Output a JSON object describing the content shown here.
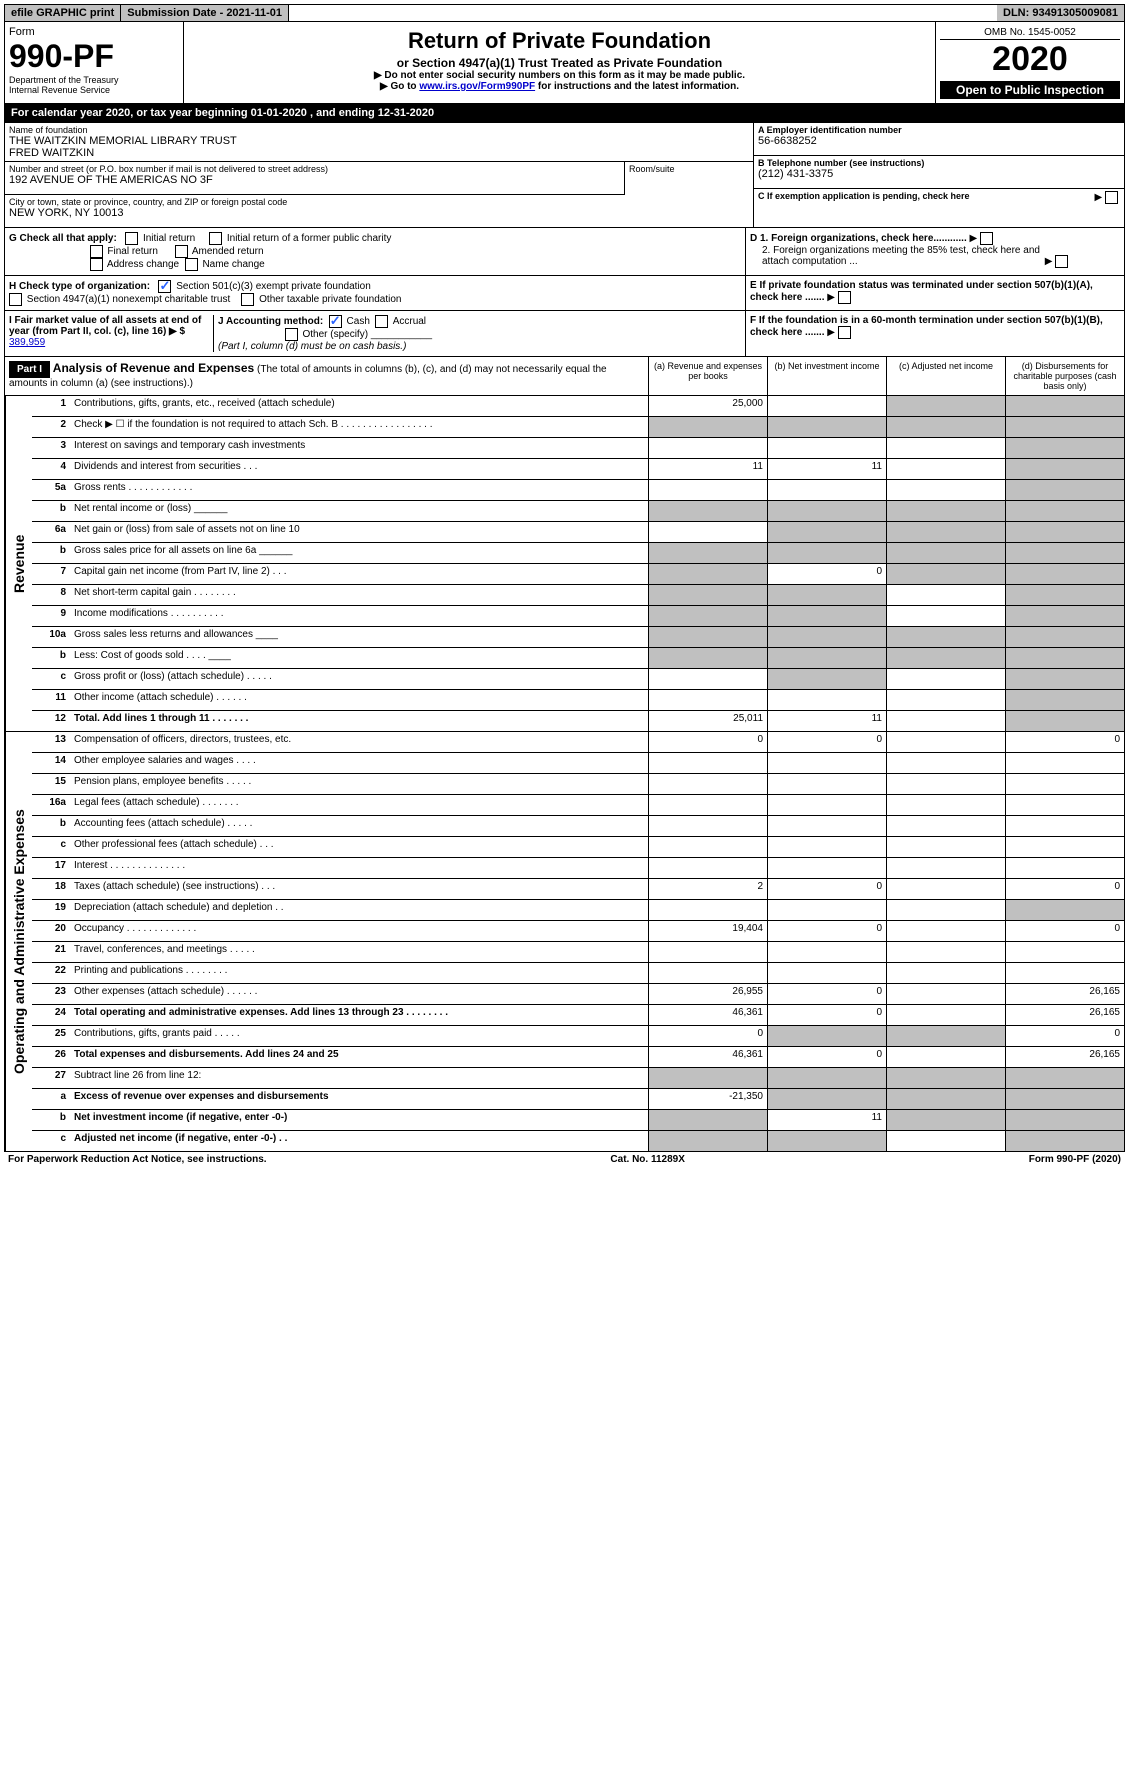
{
  "topbar": {
    "efile": "efile GRAPHIC print",
    "submission": "Submission Date - 2021-11-01",
    "dln": "DLN: 93491305009081"
  },
  "header": {
    "form_word": "Form",
    "form_num": "990-PF",
    "dept": "Department of the Treasury",
    "irs": "Internal Revenue Service",
    "title": "Return of Private Foundation",
    "subtitle": "or Section 4947(a)(1) Trust Treated as Private Foundation",
    "instr1": "▶ Do not enter social security numbers on this form as it may be made public.",
    "instr2_pre": "▶ Go to ",
    "instr2_link": "www.irs.gov/Form990PF",
    "instr2_post": " for instructions and the latest information.",
    "omb": "OMB No. 1545-0052",
    "year": "2020",
    "inspection": "Open to Public Inspection"
  },
  "calyear": "For calendar year 2020, or tax year beginning 01-01-2020          , and ending 12-31-2020",
  "info": {
    "name_label": "Name of foundation",
    "name": "THE WAITZKIN MEMORIAL LIBRARY TRUST",
    "name2": "FRED WAITZKIN",
    "addr_label": "Number and street (or P.O. box number if mail is not delivered to street address)",
    "addr": "192 AVENUE OF THE AMERICAS NO 3F",
    "room_label": "Room/suite",
    "city_label": "City or town, state or province, country, and ZIP or foreign postal code",
    "city": "NEW YORK, NY  10013",
    "ein_label": "A Employer identification number",
    "ein": "56-6638252",
    "phone_label": "B Telephone number (see instructions)",
    "phone": "(212) 431-3375",
    "c_label": "C If exemption application is pending, check here",
    "d1": "D 1. Foreign organizations, check here............",
    "d2": "2. Foreign organizations meeting the 85% test, check here and attach computation ...",
    "e_label": "E If private foundation status was terminated under section 507(b)(1)(A), check here .......",
    "f_label": "F If the foundation is in a 60-month termination under section 507(b)(1)(B), check here ......."
  },
  "g": {
    "label": "G Check all that apply:",
    "initial": "Initial return",
    "initial_former": "Initial return of a former public charity",
    "final": "Final return",
    "amended": "Amended return",
    "addr_change": "Address change",
    "name_change": "Name change"
  },
  "h": {
    "label": "H Check type of organization:",
    "s501": "Section 501(c)(3) exempt private foundation",
    "s4947": "Section 4947(a)(1) nonexempt charitable trust",
    "other": "Other taxable private foundation"
  },
  "i": {
    "label": "I Fair market value of all assets at end of year (from Part II, col. (c), line 16) ▶ $",
    "value": "389,959"
  },
  "j": {
    "label": "J Accounting method:",
    "cash": "Cash",
    "accrual": "Accrual",
    "other": "Other (specify)",
    "note": "(Part I, column (d) must be on cash basis.)"
  },
  "part1": {
    "label": "Part I",
    "title": "Analysis of Revenue and Expenses",
    "subtitle": "(The total of amounts in columns (b), (c), and (d) may not necessarily equal the amounts in column (a) (see instructions).)",
    "col_a": "(a) Revenue and expenses per books",
    "col_b": "(b) Net investment income",
    "col_c": "(c) Adjusted net income",
    "col_d": "(d) Disbursements for charitable purposes (cash basis only)"
  },
  "revenue_label": "Revenue",
  "expenses_label": "Operating and Administrative Expenses",
  "rows": [
    {
      "n": "1",
      "label": "Contributions, gifts, grants, etc., received (attach schedule)",
      "a": "25,000",
      "b": "",
      "c": "",
      "d": "",
      "c_shaded": true,
      "d_shaded": true
    },
    {
      "n": "2",
      "label": "Check ▶ ☐ if the foundation is not required to attach Sch. B  .  .  .  .  .  .  .  .  .  .  .  .  .  .  .  .  .",
      "a": "",
      "b": "",
      "c": "",
      "d": "",
      "a_shaded": true,
      "b_shaded": true,
      "c_shaded": true,
      "d_shaded": true
    },
    {
      "n": "3",
      "label": "Interest on savings and temporary cash investments",
      "a": "",
      "b": "",
      "c": "",
      "d": "",
      "d_shaded": true
    },
    {
      "n": "4",
      "label": "Dividends and interest from securities  .  .  .",
      "a": "11",
      "b": "11",
      "c": "",
      "d": "",
      "d_shaded": true
    },
    {
      "n": "5a",
      "label": "Gross rents  .  .  .  .  .  .  .  .  .  .  .  .",
      "a": "",
      "b": "",
      "c": "",
      "d": "",
      "d_shaded": true
    },
    {
      "n": "b",
      "label": "Net rental income or (loss)  ______",
      "a": "",
      "b": "",
      "c": "",
      "d": "",
      "a_shaded": true,
      "b_shaded": true,
      "c_shaded": true,
      "d_shaded": true
    },
    {
      "n": "6a",
      "label": "Net gain or (loss) from sale of assets not on line 10",
      "a": "",
      "b": "",
      "c": "",
      "d": "",
      "b_shaded": true,
      "c_shaded": true,
      "d_shaded": true
    },
    {
      "n": "b",
      "label": "Gross sales price for all assets on line 6a  ______",
      "a": "",
      "b": "",
      "c": "",
      "d": "",
      "a_shaded": true,
      "b_shaded": true,
      "c_shaded": true,
      "d_shaded": true
    },
    {
      "n": "7",
      "label": "Capital gain net income (from Part IV, line 2)  .  .  .",
      "a": "",
      "b": "0",
      "c": "",
      "d": "",
      "a_shaded": true,
      "c_shaded": true,
      "d_shaded": true
    },
    {
      "n": "8",
      "label": "Net short-term capital gain  .  .  .  .  .  .  .  .",
      "a": "",
      "b": "",
      "c": "",
      "d": "",
      "a_shaded": true,
      "b_shaded": true,
      "d_shaded": true
    },
    {
      "n": "9",
      "label": "Income modifications  .  .  .  .  .  .  .  .  .  .",
      "a": "",
      "b": "",
      "c": "",
      "d": "",
      "a_shaded": true,
      "b_shaded": true,
      "d_shaded": true
    },
    {
      "n": "10a",
      "label": "Gross sales less returns and allowances  ____",
      "a": "",
      "b": "",
      "c": "",
      "d": "",
      "a_shaded": true,
      "b_shaded": true,
      "c_shaded": true,
      "d_shaded": true
    },
    {
      "n": "b",
      "label": "Less: Cost of goods sold  .  .  .  .  ____",
      "a": "",
      "b": "",
      "c": "",
      "d": "",
      "a_shaded": true,
      "b_shaded": true,
      "c_shaded": true,
      "d_shaded": true
    },
    {
      "n": "c",
      "label": "Gross profit or (loss) (attach schedule)  .  .  .  .  .",
      "a": "",
      "b": "",
      "c": "",
      "d": "",
      "b_shaded": true,
      "d_shaded": true
    },
    {
      "n": "11",
      "label": "Other income (attach schedule)  .  .  .  .  .  .",
      "a": "",
      "b": "",
      "c": "",
      "d": "",
      "d_shaded": true
    },
    {
      "n": "12",
      "label": "Total. Add lines 1 through 11  .  .  .  .  .  .  .",
      "bold": true,
      "a": "25,011",
      "b": "11",
      "c": "",
      "d": "",
      "d_shaded": true
    }
  ],
  "exp_rows": [
    {
      "n": "13",
      "label": "Compensation of officers, directors, trustees, etc.",
      "a": "0",
      "b": "0",
      "c": "",
      "d": "0"
    },
    {
      "n": "14",
      "label": "Other employee salaries and wages  .  .  .  .",
      "a": "",
      "b": "",
      "c": "",
      "d": ""
    },
    {
      "n": "15",
      "label": "Pension plans, employee benefits  .  .  .  .  .",
      "a": "",
      "b": "",
      "c": "",
      "d": ""
    },
    {
      "n": "16a",
      "label": "Legal fees (attach schedule)  .  .  .  .  .  .  .",
      "a": "",
      "b": "",
      "c": "",
      "d": ""
    },
    {
      "n": "b",
      "label": "Accounting fees (attach schedule)  .  .  .  .  .",
      "a": "",
      "b": "",
      "c": "",
      "d": ""
    },
    {
      "n": "c",
      "label": "Other professional fees (attach schedule)  .  .  .",
      "a": "",
      "b": "",
      "c": "",
      "d": ""
    },
    {
      "n": "17",
      "label": "Interest  .  .  .  .  .  .  .  .  .  .  .  .  .  .",
      "a": "",
      "b": "",
      "c": "",
      "d": ""
    },
    {
      "n": "18",
      "label": "Taxes (attach schedule) (see instructions)  .  .  .",
      "a": "2",
      "b": "0",
      "c": "",
      "d": "0"
    },
    {
      "n": "19",
      "label": "Depreciation (attach schedule) and depletion  .  .",
      "a": "",
      "b": "",
      "c": "",
      "d": "",
      "d_shaded": true
    },
    {
      "n": "20",
      "label": "Occupancy  .  .  .  .  .  .  .  .  .  .  .  .  .",
      "a": "19,404",
      "b": "0",
      "c": "",
      "d": "0"
    },
    {
      "n": "21",
      "label": "Travel, conferences, and meetings  .  .  .  .  .",
      "a": "",
      "b": "",
      "c": "",
      "d": ""
    },
    {
      "n": "22",
      "label": "Printing and publications  .  .  .  .  .  .  .  .",
      "a": "",
      "b": "",
      "c": "",
      "d": ""
    },
    {
      "n": "23",
      "label": "Other expenses (attach schedule)  .  .  .  .  .  .",
      "a": "26,955",
      "b": "0",
      "c": "",
      "d": "26,165"
    },
    {
      "n": "24",
      "label": "Total operating and administrative expenses. Add lines 13 through 23  .  .  .  .  .  .  .  .",
      "bold": true,
      "a": "46,361",
      "b": "0",
      "c": "",
      "d": "26,165"
    },
    {
      "n": "25",
      "label": "Contributions, gifts, grants paid  .  .  .  .  .",
      "a": "0",
      "b": "",
      "c": "",
      "d": "0",
      "b_shaded": true,
      "c_shaded": true
    },
    {
      "n": "26",
      "label": "Total expenses and disbursements. Add lines 24 and 25",
      "bold": true,
      "a": "46,361",
      "b": "0",
      "c": "",
      "d": "26,165"
    },
    {
      "n": "27",
      "label": "Subtract line 26 from line 12:",
      "a": "",
      "b": "",
      "c": "",
      "d": "",
      "a_shaded": true,
      "b_shaded": true,
      "c_shaded": true,
      "d_shaded": true
    },
    {
      "n": "a",
      "label": "Excess of revenue over expenses and disbursements",
      "bold": true,
      "a": "-21,350",
      "b": "",
      "c": "",
      "d": "",
      "b_shaded": true,
      "c_shaded": true,
      "d_shaded": true
    },
    {
      "n": "b",
      "label": "Net investment income (if negative, enter -0-)",
      "bold": true,
      "a": "",
      "b": "11",
      "c": "",
      "d": "",
      "a_shaded": true,
      "c_shaded": true,
      "d_shaded": true
    },
    {
      "n": "c",
      "label": "Adjusted net income (if negative, enter -0-)  .  .",
      "bold": true,
      "a": "",
      "b": "",
      "c": "",
      "d": "",
      "a_shaded": true,
      "b_shaded": true,
      "d_shaded": true
    }
  ],
  "footer": {
    "left": "For Paperwork Reduction Act Notice, see instructions.",
    "mid": "Cat. No. 11289X",
    "right": "Form 990-PF (2020)"
  }
}
